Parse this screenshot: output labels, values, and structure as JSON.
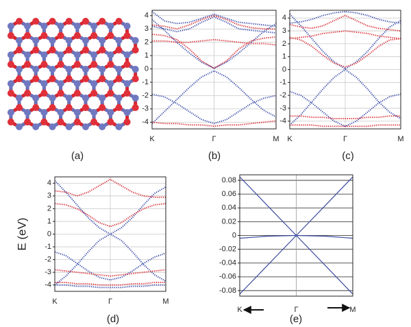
{
  "figure": {
    "structure_label": "(a)"
  },
  "chart_data": [
    {
      "type": "line",
      "label": "(b)",
      "style": "dotted",
      "grid": true,
      "grid_color": "#c8c8c8",
      "xlim": [
        0,
        1
      ],
      "xticks": [
        {
          "value": 0,
          "label": "K"
        },
        {
          "value": 0.5,
          "label": "Γ"
        },
        {
          "value": 1,
          "label": "M"
        }
      ],
      "ylim": [
        -4.5,
        4.4
      ],
      "yticks": [
        -4,
        -3,
        -2,
        -1,
        0,
        1,
        2,
        3,
        4
      ],
      "x": [
        0,
        0.1,
        0.2,
        0.3,
        0.4,
        0.5,
        0.6,
        0.7,
        0.8,
        0.9,
        1
      ],
      "series": [
        {
          "color": "#3548a8",
          "values": [
            -4.1,
            -3.2,
            -2.3,
            -1.4,
            -0.6,
            -0.15,
            -0.6,
            -1.4,
            -2.3,
            -3.1,
            -3.6
          ]
        },
        {
          "color": "#3548a8",
          "values": [
            3.7,
            2.9,
            2.0,
            1.2,
            0.5,
            0.05,
            0.5,
            1.2,
            2.0,
            2.8,
            3.4
          ]
        },
        {
          "color": "#3548a8",
          "values": [
            -1.9,
            -2.1,
            -2.6,
            -3.2,
            -3.8,
            -4.1,
            -3.8,
            -3.2,
            -2.6,
            -2.2,
            -2.0
          ]
        },
        {
          "color": "#3548a8",
          "values": [
            4.3,
            3.6,
            3.4,
            3.5,
            3.8,
            4.1,
            3.8,
            3.5,
            3.4,
            3.3,
            3.2
          ]
        },
        {
          "color": "#3548a8",
          "values": [
            3.2,
            3.0,
            2.8,
            3.0,
            3.5,
            3.9,
            3.5,
            3.0,
            2.9,
            2.8,
            2.7
          ]
        },
        {
          "color": "#d8262e",
          "values": [
            2.6,
            2.5,
            2.2,
            1.5,
            0.6,
            0.05,
            0.6,
            1.5,
            2.1,
            2.3,
            2.4
          ]
        },
        {
          "color": "#d8262e",
          "values": [
            2.1,
            2.1,
            2.0,
            2.0,
            2.1,
            2.2,
            2.1,
            2.0,
            1.9,
            1.9,
            1.8
          ]
        },
        {
          "color": "#d8262e",
          "values": [
            -4.0,
            -4.1,
            -4.1,
            -4.2,
            -4.2,
            -4.3,
            -4.2,
            -4.2,
            -4.1,
            -4.0,
            -3.9
          ]
        },
        {
          "color": "#d8262e",
          "values": [
            3.3,
            3.2,
            3.0,
            3.3,
            3.7,
            4.0,
            3.7,
            3.3,
            3.1,
            3.0,
            3.0
          ]
        }
      ]
    },
    {
      "type": "line",
      "label": "(c)",
      "style": "dotted",
      "grid": true,
      "grid_color": "#c8c8c8",
      "xlim": [
        0,
        1
      ],
      "xticks": [
        {
          "value": 0,
          "label": "K"
        },
        {
          "value": 0.5,
          "label": "Γ"
        },
        {
          "value": 1,
          "label": "M"
        }
      ],
      "ylim": [
        -4.6,
        4.6
      ],
      "yticks": [
        -4,
        -3,
        -2,
        -1,
        0,
        1,
        2,
        3,
        4
      ],
      "x": [
        0,
        0.1,
        0.2,
        0.3,
        0.4,
        0.5,
        0.6,
        0.7,
        0.8,
        0.9,
        1
      ],
      "series": [
        {
          "color": "#3548a8",
          "values": [
            -4.3,
            -3.5,
            -2.5,
            -1.5,
            -0.6,
            0.0,
            -0.6,
            -1.5,
            -2.5,
            -3.3,
            -3.8
          ]
        },
        {
          "color": "#3548a8",
          "values": [
            4.3,
            3.4,
            2.4,
            1.4,
            0.6,
            0.05,
            0.6,
            1.4,
            2.4,
            3.3,
            3.8
          ]
        },
        {
          "color": "#3548a8",
          "values": [
            -1.7,
            -2.0,
            -2.6,
            -3.3,
            -4.0,
            -4.4,
            -4.0,
            -3.3,
            -2.6,
            -2.1,
            -1.9
          ]
        },
        {
          "color": "#3548a8",
          "values": [
            3.6,
            3.7,
            3.9,
            4.2,
            4.4,
            4.5,
            4.4,
            4.2,
            3.9,
            3.7,
            3.6
          ]
        },
        {
          "color": "#d8262e",
          "values": [
            2.5,
            2.3,
            1.8,
            1.1,
            0.5,
            0.2,
            0.5,
            1.1,
            1.8,
            2.3,
            2.4
          ]
        },
        {
          "color": "#d8262e",
          "values": [
            2.4,
            2.5,
            2.6,
            2.8,
            2.9,
            3.0,
            2.9,
            2.8,
            2.6,
            2.5,
            2.4
          ]
        },
        {
          "color": "#d8262e",
          "values": [
            -3.6,
            -3.6,
            -3.7,
            -3.7,
            -3.8,
            -3.8,
            -3.8,
            -3.7,
            -3.7,
            -3.6,
            -3.6
          ]
        },
        {
          "color": "#d8262e",
          "values": [
            -4.3,
            -4.3,
            -4.3,
            -4.4,
            -4.4,
            -4.4,
            -4.4,
            -4.4,
            -4.3,
            -4.3,
            -4.3
          ]
        },
        {
          "color": "#d8262e",
          "values": [
            3.5,
            3.3,
            3.2,
            3.4,
            3.8,
            4.2,
            3.8,
            3.4,
            3.2,
            3.1,
            3.0
          ]
        }
      ]
    },
    {
      "type": "line",
      "label": "(d)",
      "ylabel": "E (eV)",
      "style": "dotted",
      "grid": true,
      "grid_color": "#c8c8c8",
      "xlim": [
        0,
        1
      ],
      "xticks": [
        {
          "value": 0,
          "label": "K"
        },
        {
          "value": 0.5,
          "label": "Γ"
        },
        {
          "value": 1,
          "label": "M"
        }
      ],
      "ylim": [
        -4.5,
        4.5
      ],
      "yticks": [
        -4,
        -3,
        -2,
        -1,
        0,
        1,
        2,
        3,
        4
      ],
      "x": [
        0,
        0.1,
        0.2,
        0.3,
        0.4,
        0.5,
        0.6,
        0.7,
        0.8,
        0.9,
        1
      ],
      "series": [
        {
          "color": "#3548a8",
          "values": [
            -4.0,
            -3.3,
            -2.4,
            -1.4,
            -0.5,
            0.0,
            -0.5,
            -1.4,
            -2.4,
            -3.2,
            -3.7
          ]
        },
        {
          "color": "#3548a8",
          "values": [
            4.2,
            3.3,
            2.3,
            1.3,
            0.5,
            0.0,
            0.5,
            1.3,
            2.3,
            3.2,
            3.7
          ]
        },
        {
          "color": "#3548a8",
          "values": [
            -1.4,
            -1.7,
            -2.3,
            -2.9,
            -3.4,
            -3.6,
            -3.4,
            -2.9,
            -2.3,
            -1.8,
            -1.5
          ]
        },
        {
          "color": "#3548a8",
          "values": [
            -4.0,
            -4.0,
            -4.1,
            -4.1,
            -4.2,
            -4.2,
            -4.2,
            -4.1,
            -4.1,
            -4.0,
            -4.0
          ]
        },
        {
          "color": "#d8262e",
          "values": [
            2.4,
            2.3,
            2.0,
            1.5,
            0.9,
            0.6,
            0.9,
            1.5,
            2.0,
            2.3,
            2.4
          ]
        },
        {
          "color": "#d8262e",
          "values": [
            3.4,
            3.3,
            3.0,
            3.3,
            3.8,
            4.3,
            3.8,
            3.3,
            3.0,
            2.9,
            2.9
          ]
        },
        {
          "color": "#d8262e",
          "values": [
            -2.8,
            -2.9,
            -3.0,
            -3.1,
            -3.2,
            -3.3,
            -3.2,
            -3.1,
            -3.0,
            -2.9,
            -2.8
          ]
        },
        {
          "color": "#d8262e",
          "values": [
            -3.8,
            -3.8,
            -3.9,
            -3.9,
            -4.0,
            -4.0,
            -4.0,
            -3.9,
            -3.9,
            -3.8,
            -3.8
          ]
        }
      ]
    },
    {
      "type": "line",
      "label": "(e)",
      "style": "solid",
      "grid": true,
      "grid_color": "#222222",
      "xlim": [
        0,
        1
      ],
      "xticks": [
        {
          "value": 0,
          "label": "K"
        },
        {
          "value": 0.5,
          "label": "Γ"
        },
        {
          "value": 1,
          "label": "M"
        }
      ],
      "ylim": [
        -0.088,
        0.088
      ],
      "yticks": [
        -0.08,
        -0.06,
        -0.04,
        -0.02,
        0,
        0.02,
        0.04,
        0.06,
        0.08
      ],
      "x": [
        0,
        0.25,
        0.5,
        0.75,
        1
      ],
      "series": [
        {
          "color": "#3a4aa0",
          "values": [
            0.085,
            0.0425,
            0,
            -0.0425,
            -0.085
          ]
        },
        {
          "color": "#3a4aa0",
          "values": [
            -0.085,
            -0.0425,
            0,
            0.0425,
            0.085
          ]
        },
        {
          "color": "#3a4aa0",
          "values": [
            -0.004,
            -0.001,
            0,
            -0.001,
            -0.004
          ]
        }
      ]
    }
  ]
}
